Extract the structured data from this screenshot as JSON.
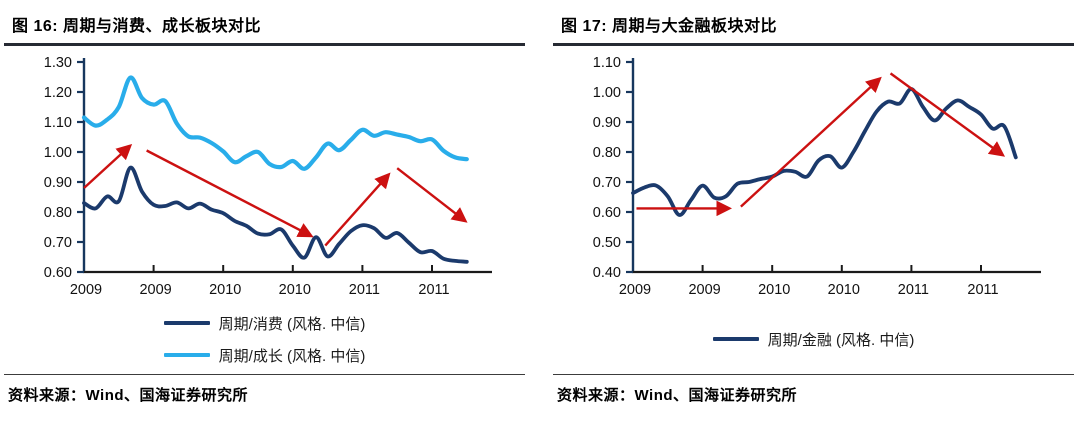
{
  "page": {
    "background": "#ffffff"
  },
  "figures": [
    {
      "title": "图 16: 周期与消费、成长板块对比",
      "source": "资料来源：Wind、国海证券研究所",
      "chart_index": 0
    },
    {
      "title": "图 17: 周期与大金融板块对比",
      "source": "资料来源：Wind、国海证券研究所",
      "chart_index": 1
    }
  ],
  "colors": {
    "navy": "#1B3A6C",
    "light_blue": "#29ADEA",
    "arrow_red": "#CC1111",
    "axis": "#17375E",
    "tick_text": "#111111"
  },
  "chart_data": [
    {
      "type": "line",
      "title": "图 16: 周期与消费、成长板块对比",
      "xlabel": "",
      "ylabel": "",
      "ylim": [
        0.6,
        1.3
      ],
      "y_ticks": [
        0.6,
        0.7,
        0.8,
        0.9,
        1.0,
        1.1,
        1.2,
        1.3
      ],
      "x_tick_labels": [
        "2009",
        "2009",
        "2010",
        "2010",
        "2011",
        "2011"
      ],
      "x_tick_positions_months": [
        0,
        6,
        12,
        18,
        24,
        30
      ],
      "grid": false,
      "legend_position": "bottom",
      "series": [
        {
          "name": "周期/消费 (风格. 中信)",
          "color": "#1B3A6C",
          "width": 3.8,
          "values": [
            0.83,
            0.812,
            0.852,
            0.836,
            0.948,
            0.868,
            0.824,
            0.82,
            0.832,
            0.812,
            0.828,
            0.808,
            0.796,
            0.77,
            0.754,
            0.728,
            0.726,
            0.742,
            0.688,
            0.648,
            0.716,
            0.652,
            0.694,
            0.736,
            0.756,
            0.746,
            0.714,
            0.73,
            0.698,
            0.666,
            0.67,
            0.644,
            0.637,
            0.634
          ]
        },
        {
          "name": "周期/成长 (风格. 中信)",
          "color": "#29ADEA",
          "width": 4.2,
          "values": [
            1.115,
            1.088,
            1.108,
            1.15,
            1.248,
            1.18,
            1.158,
            1.17,
            1.095,
            1.052,
            1.048,
            1.03,
            1.002,
            0.966,
            0.986,
            1.0,
            0.96,
            0.95,
            0.97,
            0.944,
            0.982,
            1.028,
            1.006,
            1.04,
            1.074,
            1.054,
            1.066,
            1.058,
            1.05,
            1.036,
            1.042,
            1.004,
            0.982,
            0.976
          ]
        }
      ],
      "arrows": [
        {
          "from": [
            0.0,
            0.88
          ],
          "to": [
            3.9,
            1.018
          ]
        },
        {
          "from": [
            5.4,
            1.005
          ],
          "to": [
            19.5,
            0.722
          ]
        },
        {
          "from": [
            20.8,
            0.688
          ],
          "to": [
            26.2,
            0.922
          ]
        },
        {
          "from": [
            27.0,
            0.946
          ],
          "to": [
            32.8,
            0.772
          ]
        }
      ]
    },
    {
      "type": "line",
      "title": "图 17: 周期与大金融板块对比",
      "xlabel": "",
      "ylabel": "",
      "ylim": [
        0.4,
        1.1
      ],
      "y_ticks": [
        0.4,
        0.5,
        0.6,
        0.7,
        0.8,
        0.9,
        1.0,
        1.1
      ],
      "x_tick_labels": [
        "2009",
        "2009",
        "2010",
        "2010",
        "2011",
        "2011"
      ],
      "x_tick_positions_months": [
        0,
        6,
        12,
        18,
        24,
        30
      ],
      "grid": false,
      "legend_position": "bottom",
      "series": [
        {
          "name": "周期/金融 (风格. 中信)",
          "color": "#1B3A6C",
          "width": 3.8,
          "values": [
            0.663,
            0.682,
            0.688,
            0.652,
            0.59,
            0.64,
            0.688,
            0.648,
            0.652,
            0.694,
            0.7,
            0.71,
            0.718,
            0.737,
            0.734,
            0.718,
            0.772,
            0.786,
            0.748,
            0.8,
            0.87,
            0.935,
            0.968,
            0.962,
            1.01,
            0.95,
            0.905,
            0.945,
            0.972,
            0.95,
            0.925,
            0.878,
            0.886,
            0.782
          ]
        }
      ],
      "arrows": [
        {
          "from": [
            0.3,
            0.612
          ],
          "to": [
            8.2,
            0.612
          ]
        },
        {
          "from": [
            9.3,
            0.618
          ],
          "to": [
            21.2,
            1.042
          ]
        },
        {
          "from": [
            22.2,
            1.062
          ],
          "to": [
            31.8,
            0.792
          ]
        }
      ]
    }
  ]
}
